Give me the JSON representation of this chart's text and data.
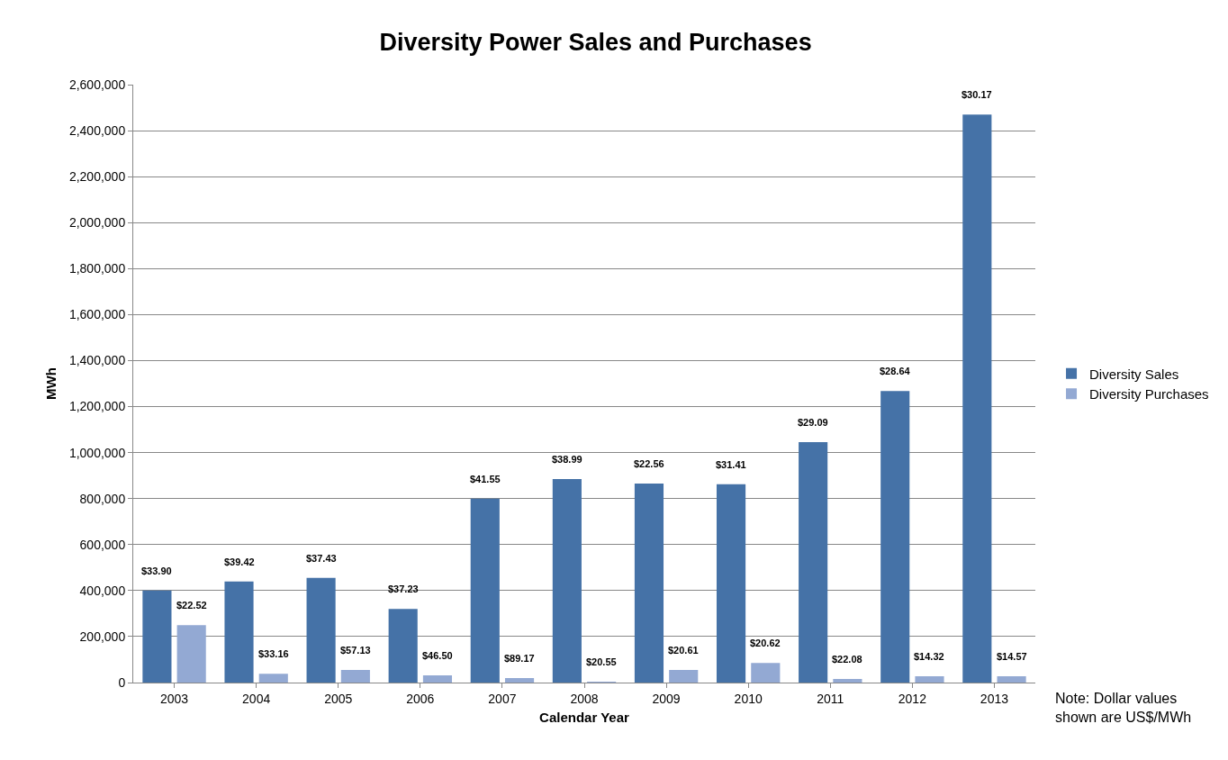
{
  "chart_data": {
    "type": "bar",
    "title": "Diversity Power Sales and Purchases",
    "xlabel": "Calendar Year",
    "ylabel": "MWh",
    "categories": [
      "2003",
      "2004",
      "2005",
      "2006",
      "2007",
      "2008",
      "2009",
      "2010",
      "2011",
      "2012",
      "2013"
    ],
    "series": [
      {
        "name": "Diversity Sales",
        "color": "#4572a7",
        "values": [
          400000,
          440000,
          455000,
          320000,
          800000,
          885000,
          865000,
          862000,
          1045000,
          1268000,
          2470000
        ]
      },
      {
        "name": "Diversity Purchases",
        "color": "#93a9d3",
        "values": [
          250000,
          38000,
          55000,
          31000,
          20000,
          2000,
          55000,
          85000,
          16000,
          27000,
          27000
        ]
      }
    ],
    "ylim": [
      0,
      2600000
    ],
    "yticks": [
      {
        "value": 0,
        "label": "0"
      },
      {
        "value": 200000,
        "label": "200,000"
      },
      {
        "value": 400000,
        "label": "400,000"
      },
      {
        "value": 600000,
        "label": "600,000"
      },
      {
        "value": 800000,
        "label": "800,000"
      },
      {
        "value": 1000000,
        "label": "1,000,000"
      },
      {
        "value": 1200000,
        "label": "1,200,000"
      },
      {
        "value": 1400000,
        "label": "1,400,000"
      },
      {
        "value": 1600000,
        "label": "1,600,000"
      },
      {
        "value": 1800000,
        "label": "1,800,000"
      },
      {
        "value": 2000000,
        "label": "2,000,000"
      },
      {
        "value": 2200000,
        "label": "2,200,000"
      },
      {
        "value": 2400000,
        "label": "2,400,000"
      },
      {
        "value": 2600000,
        "label": "2,600,000"
      }
    ],
    "grid": "y",
    "legend": "right",
    "annotations": [
      {
        "text": "$33.90",
        "x": "2003",
        "y": 400000
      },
      {
        "text": "$39.42",
        "x": "2004",
        "y": 440000
      },
      {
        "text": "$37.43",
        "x": "2005",
        "y": 455000
      },
      {
        "text": "$37.23",
        "x": "2006",
        "y": 320000
      },
      {
        "text": "$41.55",
        "x": "2007",
        "y": 800000
      },
      {
        "text": "$38.99",
        "x": "2008",
        "y": 885000
      },
      {
        "text": "$22.56",
        "x": "2009",
        "y": 865000
      },
      {
        "text": "$31.41",
        "x": "2010",
        "y": 862000
      },
      {
        "text": "$29.09",
        "x": "2011",
        "y": 1045000
      },
      {
        "text": "$28.64",
        "x": "2012",
        "y": 1268000
      },
      {
        "text": "$30.17",
        "x": "2013",
        "y": 2470000
      },
      {
        "text": "$22.52",
        "x": "2003",
        "y": 250000
      },
      {
        "text": "$33.16",
        "x": "2004",
        "y": 38000
      },
      {
        "text": "$57.13",
        "x": "2005",
        "y": 55000
      },
      {
        "text": "$46.50",
        "x": "2006",
        "y": 31000
      },
      {
        "text": "$89.17",
        "x": "2007",
        "y": 20000
      },
      {
        "text": "$20.55",
        "x": "2008",
        "y": 2000
      },
      {
        "text": "$20.61",
        "x": "2009",
        "y": 55000
      },
      {
        "text": "$20.62",
        "x": "2010",
        "y": 85000
      },
      {
        "text": "$22.08",
        "x": "2011",
        "y": 16000
      },
      {
        "text": "$14.32",
        "x": "2012",
        "y": 27000
      },
      {
        "text": "$14.57",
        "x": "2013",
        "y": 27000
      },
      "Note: Dollar values\nshown are US$/MWh"
    ]
  }
}
